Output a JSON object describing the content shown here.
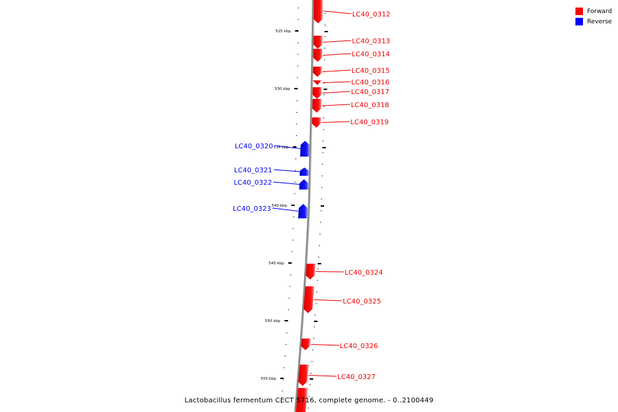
{
  "caption": "Lactobacillus fermentum CECT 5716, complete genome. - 0..2100449",
  "legend": [
    {
      "label": "Forward",
      "color": "#ff0000"
    },
    {
      "label": "Reverse",
      "color": "#0000ff"
    }
  ],
  "colors": {
    "forward": "#ee0000",
    "reverse": "#0000ee",
    "genome_line": "#888888",
    "tick": "#000000"
  },
  "scale": {
    "unit": "kbp",
    "labels": [
      "525 kbp",
      "530 kbp",
      "535 kbp",
      "540 kbp",
      "545 kbp",
      "550 kbp",
      "555 kbp"
    ]
  },
  "genes": [
    {
      "id": "LC40_0312",
      "strand": "forward"
    },
    {
      "id": "LC40_0313",
      "strand": "forward"
    },
    {
      "id": "LC40_0314",
      "strand": "forward"
    },
    {
      "id": "LC40_0315",
      "strand": "forward"
    },
    {
      "id": "LC40_0316",
      "strand": "forward"
    },
    {
      "id": "LC40_0317",
      "strand": "forward"
    },
    {
      "id": "LC40_0318",
      "strand": "forward"
    },
    {
      "id": "LC40_0319",
      "strand": "forward"
    },
    {
      "id": "LC40_0320",
      "strand": "reverse"
    },
    {
      "id": "LC40_0321",
      "strand": "reverse"
    },
    {
      "id": "LC40_0322",
      "strand": "reverse"
    },
    {
      "id": "LC40_0323",
      "strand": "reverse"
    },
    {
      "id": "LC40_0324",
      "strand": "forward"
    },
    {
      "id": "LC40_0325",
      "strand": "forward"
    },
    {
      "id": "LC40_0326",
      "strand": "forward"
    },
    {
      "id": "LC40_0327",
      "strand": "forward"
    }
  ]
}
